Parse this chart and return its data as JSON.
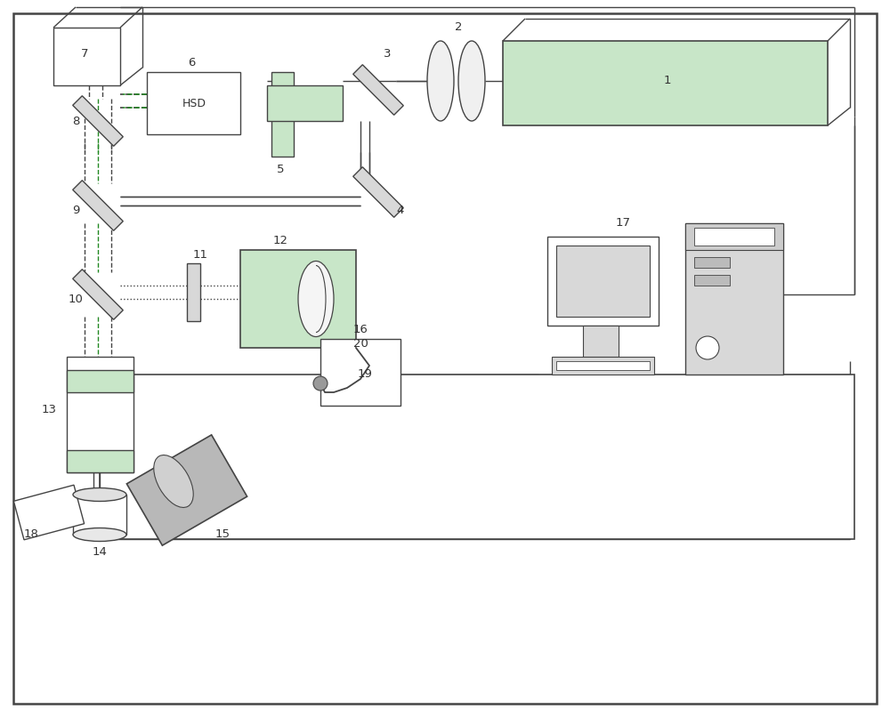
{
  "bg": "#ffffff",
  "lc": "#444444",
  "fill_green": "#c8e6c8",
  "fill_gray": "#b8b8b8",
  "fill_lgray": "#d8d8d8",
  "fill_white": "#ffffff",
  "fill_dark": "#888888",
  "dashed_gray": "#555555",
  "green_dash": "#228822",
  "dotted_col": "#666666",
  "figsize": [
    10.0,
    8.06
  ],
  "dpi": 100
}
